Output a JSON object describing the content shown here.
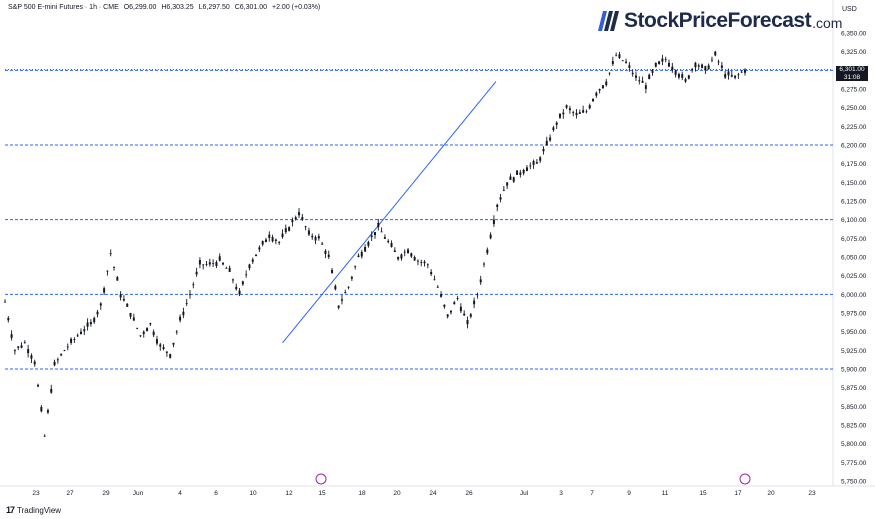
{
  "header": {
    "symbol": "S&P 500 E-mini Futures · 1h · CME",
    "open": "O6,299.00",
    "high": "H6,303.25",
    "low": "L6,297.50",
    "close": "C6,301.00",
    "change": "+2.00 (+0.03%)"
  },
  "brand": {
    "name": "StockPriceForecast",
    "tld": ".com"
  },
  "footer": {
    "platform": "TradingView"
  },
  "axis": {
    "currency": "USD"
  },
  "price_tag": {
    "price": "6,301.00",
    "timer": "31:08"
  },
  "colors": {
    "candles": "#131722",
    "levels": "#2962ff",
    "trendline": "#2962ff",
    "background": "#ffffff"
  },
  "chart_data": {
    "type": "line",
    "title": "",
    "series": [
      {
        "x_index": [
          0,
          3,
          6,
          9,
          12,
          15,
          18,
          20,
          23,
          26,
          29,
          32,
          35,
          38,
          41,
          44,
          47,
          50,
          53,
          56,
          59,
          62,
          65,
          68,
          71,
          74,
          77,
          80,
          83,
          86,
          89,
          92,
          95,
          98,
          101,
          104,
          107,
          110,
          113,
          116,
          119,
          122,
          125,
          128,
          131,
          134,
          137,
          140,
          143,
          146,
          149,
          152,
          155,
          158,
          161,
          164,
          167,
          170,
          173,
          176,
          179,
          182,
          185,
          188,
          191,
          194,
          197,
          200,
          203,
          206,
          209,
          212,
          215,
          218,
          221,
          224
        ],
        "values": [
          5990,
          5925,
          5935,
          5910,
          5810,
          5905,
          5925,
          5935,
          5950,
          5960,
          5985,
          6055,
          6000,
          5975,
          5945,
          5960,
          5930,
          5920,
          5965,
          6000,
          6040,
          6040,
          6045,
          6030,
          6000,
          6040,
          6060,
          6080,
          6070,
          6090,
          6110,
          6080,
          6075,
          6050,
          5985,
          6010,
          6050,
          6070,
          6090,
          6070,
          6050,
          6060,
          6045,
          6040,
          6010,
          5970,
          5995,
          5960,
          6000,
          6060,
          6120,
          6150,
          6160,
          6170,
          6175,
          6200,
          6230,
          6250,
          6240,
          6245,
          6270,
          6285,
          6320,
          6310,
          6290,
          6280,
          6305,
          6315,
          6300,
          6285,
          6310,
          6300,
          6320,
          6295,
          6290,
          6301
        ]
      }
    ],
    "x_tick_labels": [
      "23",
      "27",
      "29",
      "Jun",
      "4",
      "6",
      "10",
      "12",
      "15",
      "18",
      "20",
      "24",
      "26",
      "Jul",
      "3",
      "7",
      "9",
      "11",
      "15",
      "17",
      "20",
      "23"
    ],
    "y_tick_labels": [
      "6,350.00",
      "6,325.00",
      "6,300.00",
      "6,275.00",
      "6,250.00",
      "6,225.00",
      "6,200.00",
      "6,175.00",
      "6,150.00",
      "6,125.00",
      "6,100.00",
      "6,075.00",
      "6,050.00",
      "6,025.00",
      "6,000.00",
      "5,975.00",
      "5,950.00",
      "5,925.00",
      "5,900.00",
      "5,875.00",
      "5,850.00",
      "5,825.00",
      "5,800.00",
      "5,775.00",
      "5,750.00"
    ],
    "ylim": [
      5745,
      6370
    ],
    "levels": [
      6300,
      6200,
      6100,
      6000,
      5900
    ],
    "trendline": [
      [
        84,
        5935
      ],
      [
        148,
        6285
      ]
    ],
    "grid": false,
    "legend": "none"
  }
}
